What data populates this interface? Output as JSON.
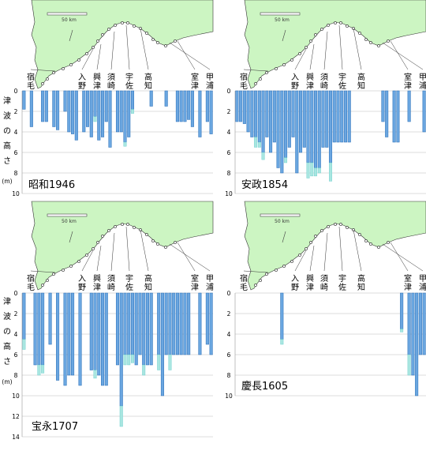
{
  "colors": {
    "land": "#ccf5c2",
    "coast": "#333333",
    "bar_main": "#6aa6e0",
    "bar_edge": "#2a6fb8",
    "bar_extra": "#a8e6e0",
    "grid": "#bbbbbb",
    "leader": "#333333"
  },
  "ylabel": "津波の高さ",
  "yunit": "(m)",
  "scale_label": "50 km",
  "places": [
    {
      "top": "宿",
      "bottom": "毛"
    },
    {
      "top": "",
      "bottom": "入野"
    },
    {
      "top": "興",
      "bottom": "津"
    },
    {
      "top": "須",
      "bottom": "崎"
    },
    {
      "top": "宇",
      "bottom": "佐"
    },
    {
      "top": "高",
      "bottom": "知"
    },
    {
      "top": "",
      "bottom": "室津"
    },
    {
      "top": "甲",
      "bottom": "浦"
    }
  ],
  "chart_data": [
    {
      "type": "bar",
      "title": "昭和1946",
      "ylim": [
        0,
        10
      ],
      "yticks": [
        0,
        2,
        4,
        6,
        8,
        10
      ],
      "inverted": true,
      "values": [
        1.8,
        0,
        3.5,
        0,
        0,
        3.0,
        3.0,
        0,
        3.5,
        3.8,
        0,
        2.0,
        4.0,
        4.2,
        4.8,
        0,
        4.0,
        3.5,
        4.5,
        2.5,
        4.8,
        4.5,
        3.0,
        5.5,
        0,
        4.0,
        4.0,
        5.0,
        4.5,
        1.8,
        0,
        0,
        0,
        0,
        1.5,
        0,
        0,
        0,
        1.5,
        0,
        0,
        3.0,
        3.0,
        3.0,
        2.8,
        3.5,
        0,
        4.5,
        0,
        3.0,
        4.2
      ],
      "extra": [
        0,
        0,
        0,
        0,
        0,
        0,
        0,
        0,
        0,
        0,
        0,
        0,
        0,
        0,
        0,
        0,
        0,
        0,
        0,
        0.5,
        0,
        0,
        0,
        0,
        0,
        0,
        0,
        0.4,
        0,
        0.4,
        0,
        0,
        0,
        0,
        0,
        0,
        0,
        0,
        0,
        0,
        0,
        0,
        0,
        0,
        0,
        0,
        0,
        0,
        0,
        0,
        0
      ]
    },
    {
      "type": "bar",
      "title": "安政1854",
      "ylim": [
        0,
        10
      ],
      "yticks": [
        0,
        2,
        4,
        6,
        8,
        10
      ],
      "inverted": true,
      "values": [
        3.0,
        3.0,
        3.2,
        4.0,
        4.5,
        4.5,
        5.0,
        6.0,
        4.5,
        6.0,
        5.0,
        7.5,
        8.0,
        6.5,
        5.5,
        4.5,
        8.0,
        6.0,
        5.5,
        7.0,
        7.0,
        7.5,
        7.5,
        5.5,
        5.5,
        7.0,
        5.0,
        5.0,
        5.0,
        5.0,
        5.0,
        0,
        0,
        0,
        0,
        0,
        0,
        0,
        0,
        3.0,
        4.5,
        0,
        5.0,
        5.0,
        0,
        0,
        3.0,
        0,
        0,
        0,
        4.0
      ],
      "extra": [
        0,
        0,
        0,
        0,
        0,
        1.0,
        0.5,
        0.7,
        0,
        0,
        0,
        0,
        0,
        0.5,
        0,
        0,
        0,
        0,
        0,
        1.5,
        1.3,
        0.8,
        0.5,
        0,
        0,
        1.8,
        0,
        0,
        0,
        0,
        0,
        0,
        0,
        0,
        0,
        0,
        0,
        0,
        0,
        0,
        0,
        0,
        0,
        0,
        0,
        0,
        0,
        0,
        0,
        0,
        0
      ]
    },
    {
      "type": "bar",
      "title": "宝永1707",
      "ylim": [
        0,
        14
      ],
      "yticks": [
        0,
        2,
        4,
        6,
        8,
        10,
        12,
        14
      ],
      "inverted": true,
      "values": [
        4.5,
        0,
        0,
        7.0,
        7.0,
        7.0,
        0,
        5.0,
        0,
        8.5,
        0,
        9.0,
        8.0,
        8.0,
        0,
        9.0,
        0,
        0,
        7.5,
        7.5,
        8.0,
        9.0,
        9.0,
        0,
        0,
        7.0,
        11.0,
        6.0,
        6.0,
        6.0,
        7.0,
        6.0,
        7.0,
        7.0,
        7.0,
        0,
        6.0,
        10.0,
        6.0,
        6.0,
        6.0,
        6.0,
        6.0,
        6.0,
        6.0,
        0,
        0,
        6.0,
        0,
        5.0,
        6.0
      ],
      "extra": [
        1.0,
        0,
        0,
        0,
        1.0,
        0.8,
        0,
        0,
        0,
        0,
        0,
        0,
        0,
        0,
        0,
        0,
        0,
        0,
        0,
        0.8,
        0,
        0,
        0,
        0,
        0,
        0,
        2.0,
        1.0,
        1.0,
        0.8,
        0,
        0,
        1.0,
        0,
        0,
        0,
        1.5,
        0,
        0,
        1.5,
        0,
        0,
        0,
        0,
        0,
        0,
        0,
        0,
        0,
        0,
        0
      ]
    },
    {
      "type": "bar",
      "title": "慶長1605",
      "ylim": [
        0,
        10
      ],
      "yticks": [
        0,
        2,
        4,
        6,
        8,
        10
      ],
      "inverted": true,
      "values": [
        0,
        0,
        0,
        0,
        0,
        0,
        0,
        0,
        0,
        0,
        0,
        0,
        4.5,
        0,
        0,
        0,
        0,
        0,
        0,
        0,
        0,
        0,
        0,
        0,
        0,
        0,
        0,
        0,
        0,
        0,
        0,
        0,
        0,
        0,
        0,
        0,
        0,
        0,
        0,
        0,
        0,
        0,
        0,
        0,
        3.5,
        0,
        6.0,
        8.0,
        10.0,
        6.0,
        6.0
      ],
      "extra": [
        0,
        0,
        0,
        0,
        0,
        0,
        0,
        0,
        0,
        0,
        0,
        0,
        0.5,
        0,
        0,
        0,
        0,
        0,
        0,
        0,
        0,
        0,
        0,
        0,
        0,
        0,
        0,
        0,
        0,
        0,
        0,
        0,
        0,
        0,
        0,
        0,
        0,
        0,
        0,
        0,
        0,
        0,
        0,
        0,
        0.3,
        0,
        2.0,
        0,
        0,
        0,
        0
      ]
    }
  ]
}
